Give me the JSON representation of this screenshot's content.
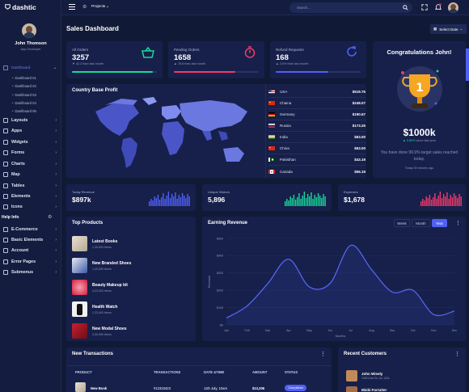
{
  "brand": {
    "name": "dashtic"
  },
  "user": {
    "name": "John Thomson",
    "role": "App Developer"
  },
  "sidebar": {
    "dashboard": "Dashboard",
    "sub": [
      "Dashboard 01",
      "Dashboard 02",
      "Dashboard 03",
      "Dashboard 04",
      "Dashboard 05"
    ],
    "items": [
      "Layouts",
      "Apps",
      "Widgets",
      "Forms",
      "Charts",
      "Map",
      "Tables",
      "Elements",
      "Icons"
    ],
    "help": "Help Info",
    "items2": [
      "E-Commerce",
      "Basic Elements",
      "Account",
      "Error Pages",
      "Submenus"
    ]
  },
  "topbar": {
    "projects": "Projects",
    "search_placeholder": "Search..."
  },
  "header": {
    "title": "Sales Dashboard",
    "select_date": "Select Date"
  },
  "stats": [
    {
      "label": "All Orders",
      "value": "3257",
      "delta": "▼ 42.2 than last month",
      "accent": "#16d99a"
    },
    {
      "label": "Pending Orders",
      "value": "1658",
      "delta": "▲ 78.8 than last month",
      "accent": "#f23a6a"
    },
    {
      "label": "Refund Requests",
      "value": "168",
      "delta": "▲ 2.6% than last month",
      "accent": "#4f60f5"
    }
  ],
  "congrats": {
    "title": "Congratulations John!",
    "amount": "$1000k",
    "growth": "▲ 0.80%",
    "growth_note": "since last year",
    "message": "You have done 99.9% target sales reached today.",
    "time": "Today 35 minutes ago"
  },
  "map": {
    "title": "Country Base Profit",
    "rows": [
      {
        "country": "USA",
        "value": "$519.75"
      },
      {
        "country": "Chaina",
        "value": "$248.07"
      },
      {
        "country": "Germany",
        "value": "$190.57"
      },
      {
        "country": "Russia",
        "value": "$173.25"
      },
      {
        "country": "India",
        "value": "$63.00"
      },
      {
        "country": "China",
        "value": "$53.00"
      },
      {
        "country": "Pakisthan",
        "value": "$43.19"
      },
      {
        "country": "Canada",
        "value": "$56.19"
      }
    ]
  },
  "mini": [
    {
      "label": "Today Revenue",
      "value": "$897k",
      "color": "#4f60f5"
    },
    {
      "label": "Unique Visitors",
      "value": "5,896",
      "color": "#16d99a"
    },
    {
      "label": "Expenses",
      "value": "$1,678",
      "color": "#f23a6a"
    }
  ],
  "products": {
    "title": "Top Products",
    "items": [
      {
        "name": "Latest Books",
        "sub": "1,30,600 Items"
      },
      {
        "name": "New Branded Shoes",
        "sub": "1,20,090 Items"
      },
      {
        "name": "Beauty Makeup kit",
        "sub": "3,23,200 Items"
      },
      {
        "name": "Health Watch",
        "sub": "1,23,400 Items"
      },
      {
        "name": "New Modal Shoes",
        "sub": "2,00,900 Items"
      }
    ]
  },
  "earning": {
    "title": "Earning Revenue",
    "tabs": [
      "Week",
      "Month",
      "Year"
    ],
    "active_tab": "Year",
    "xlabel": "Months",
    "ylabel": "Revenue"
  },
  "chart_data": {
    "type": "line",
    "title": "Earning Revenue",
    "x": [
      "Jan",
      "Feb",
      "Mar",
      "Apr",
      "May",
      "Jun",
      "Jul",
      "Aug",
      "Sep",
      "Oct",
      "Nov",
      "Dec"
    ],
    "series": [
      {
        "name": "",
        "values": [
          40,
          110,
          240,
          380,
          220,
          240,
          460,
          320,
          190,
          200,
          60,
          80
        ]
      }
    ],
    "ylim": [
      0,
      500
    ],
    "yticks": [
      "$0",
      "$100",
      "$200",
      "$300",
      "$400",
      "$500"
    ],
    "xlabel": "Months",
    "ylabel": "Revenue",
    "grid": true,
    "color": "#5563f2"
  },
  "transactions": {
    "title": "New Transactions",
    "columns": [
      "PRODUCT",
      "TRANSACTIONS",
      "DATE &TIME",
      "AMOUNT",
      "STATUS"
    ],
    "row": {
      "product": "New Book",
      "id": "#12323423",
      "date": "11th July, 10am",
      "amount": "$13,206",
      "status": "Completed"
    }
  },
  "customers": {
    "title": "Recent Customers",
    "items": [
      {
        "name": "John Wisely",
        "sub": "1000 Kds Rd, VA, USA"
      },
      {
        "name": "Micki Forruiter",
        "sub": ""
      }
    ]
  }
}
